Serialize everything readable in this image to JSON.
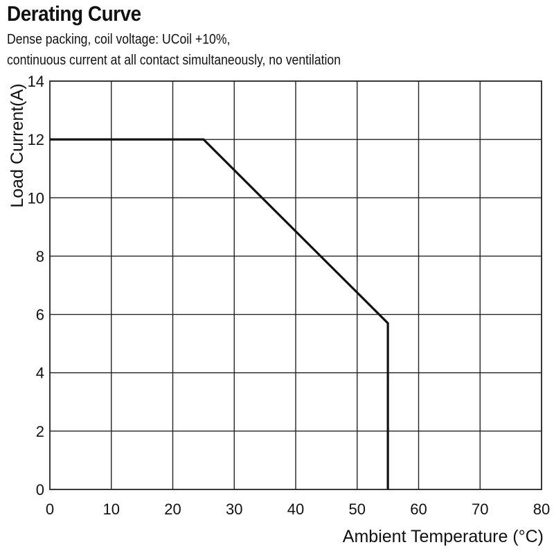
{
  "chart_data": {
    "type": "line",
    "title": "Derating Curve",
    "subtitle_lines": [
      "Dense packing, coil voltage: UCoil +10%,",
      "continuous current at all contact simultaneously, no ventilation"
    ],
    "xlabel": "Ambient Temperature (°C)",
    "ylabel": "Load Current(A)",
    "xlim": [
      0,
      80
    ],
    "ylim": [
      0,
      14
    ],
    "xticks": [
      0,
      10,
      20,
      30,
      40,
      50,
      60,
      70,
      80
    ],
    "yticks": [
      0,
      2,
      4,
      6,
      8,
      10,
      12,
      14
    ],
    "grid": true,
    "series": [
      {
        "x": [
          0,
          25,
          55,
          55
        ],
        "y": [
          12,
          12,
          5.7,
          0
        ]
      }
    ],
    "colors": {
      "line": "#111111",
      "grid": "#222222"
    }
  }
}
